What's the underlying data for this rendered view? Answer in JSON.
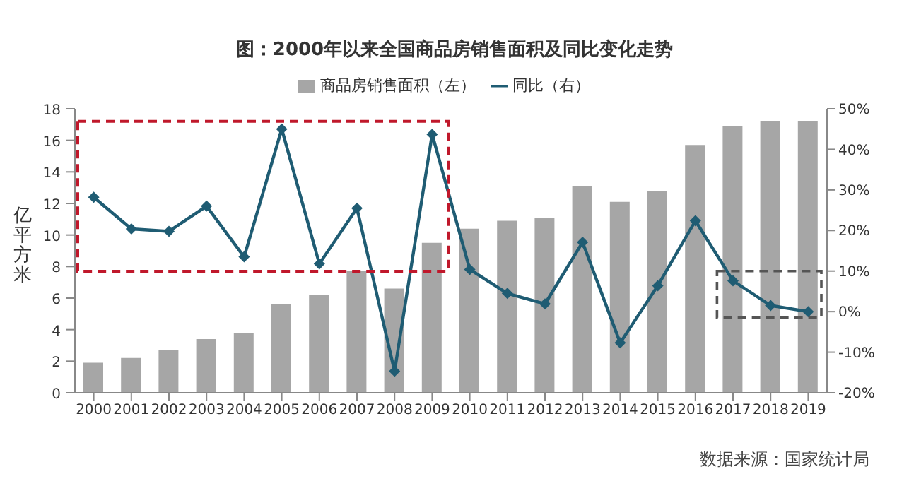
{
  "chart_data": {
    "type": "bar",
    "title": "图：2000年以来全国商品房销售面积及同比变化走势",
    "ylabel": "亿平方米",
    "categories": [
      "2000",
      "2001",
      "2002",
      "2003",
      "2004",
      "2005",
      "2006",
      "2007",
      "2008",
      "2009",
      "2010",
      "2011",
      "2012",
      "2013",
      "2014",
      "2015",
      "2016",
      "2017",
      "2018",
      "2019"
    ],
    "series": [
      {
        "name": "商品房销售面积（左）",
        "color": "#a6a6a6",
        "values": [
          1.9,
          2.2,
          2.7,
          3.4,
          3.8,
          5.6,
          6.2,
          7.7,
          6.6,
          9.5,
          10.4,
          10.9,
          11.1,
          13.1,
          12.1,
          12.8,
          15.7,
          16.9,
          17.2,
          17.2
        ]
      },
      {
        "name": "同比（右）",
        "type": "line",
        "axis": "y2",
        "color": "#1f5c73",
        "values": [
          28.2,
          20.4,
          19.8,
          26,
          13.5,
          45,
          11.8,
          25.5,
          -14.7,
          43.7,
          10.4,
          4.5,
          1.9,
          17.1,
          -7.7,
          6.4,
          22.4,
          7.6,
          1.5,
          0
        ]
      }
    ],
    "ylim": [
      0,
      18
    ],
    "yticks": [
      0,
      2,
      4,
      6,
      8,
      10,
      12,
      14,
      16,
      18
    ],
    "y2lim": [
      -20,
      50
    ],
    "y2ticks": [
      {
        "value": -20,
        "label": "-20%"
      },
      {
        "value": -10,
        "label": "-10%"
      },
      {
        "value": 0,
        "label": "0%"
      },
      {
        "value": 10,
        "label": "10%"
      },
      {
        "value": 20,
        "label": "20%"
      },
      {
        "value": 30,
        "label": "30%"
      },
      {
        "value": 40,
        "label": "40%"
      },
      {
        "value": 50,
        "label": "50%"
      }
    ],
    "grid": false,
    "legend": "top",
    "marker": "diamond",
    "line_style": "solid",
    "annotations": [
      "数据来源：国家统计局"
    ]
  }
}
